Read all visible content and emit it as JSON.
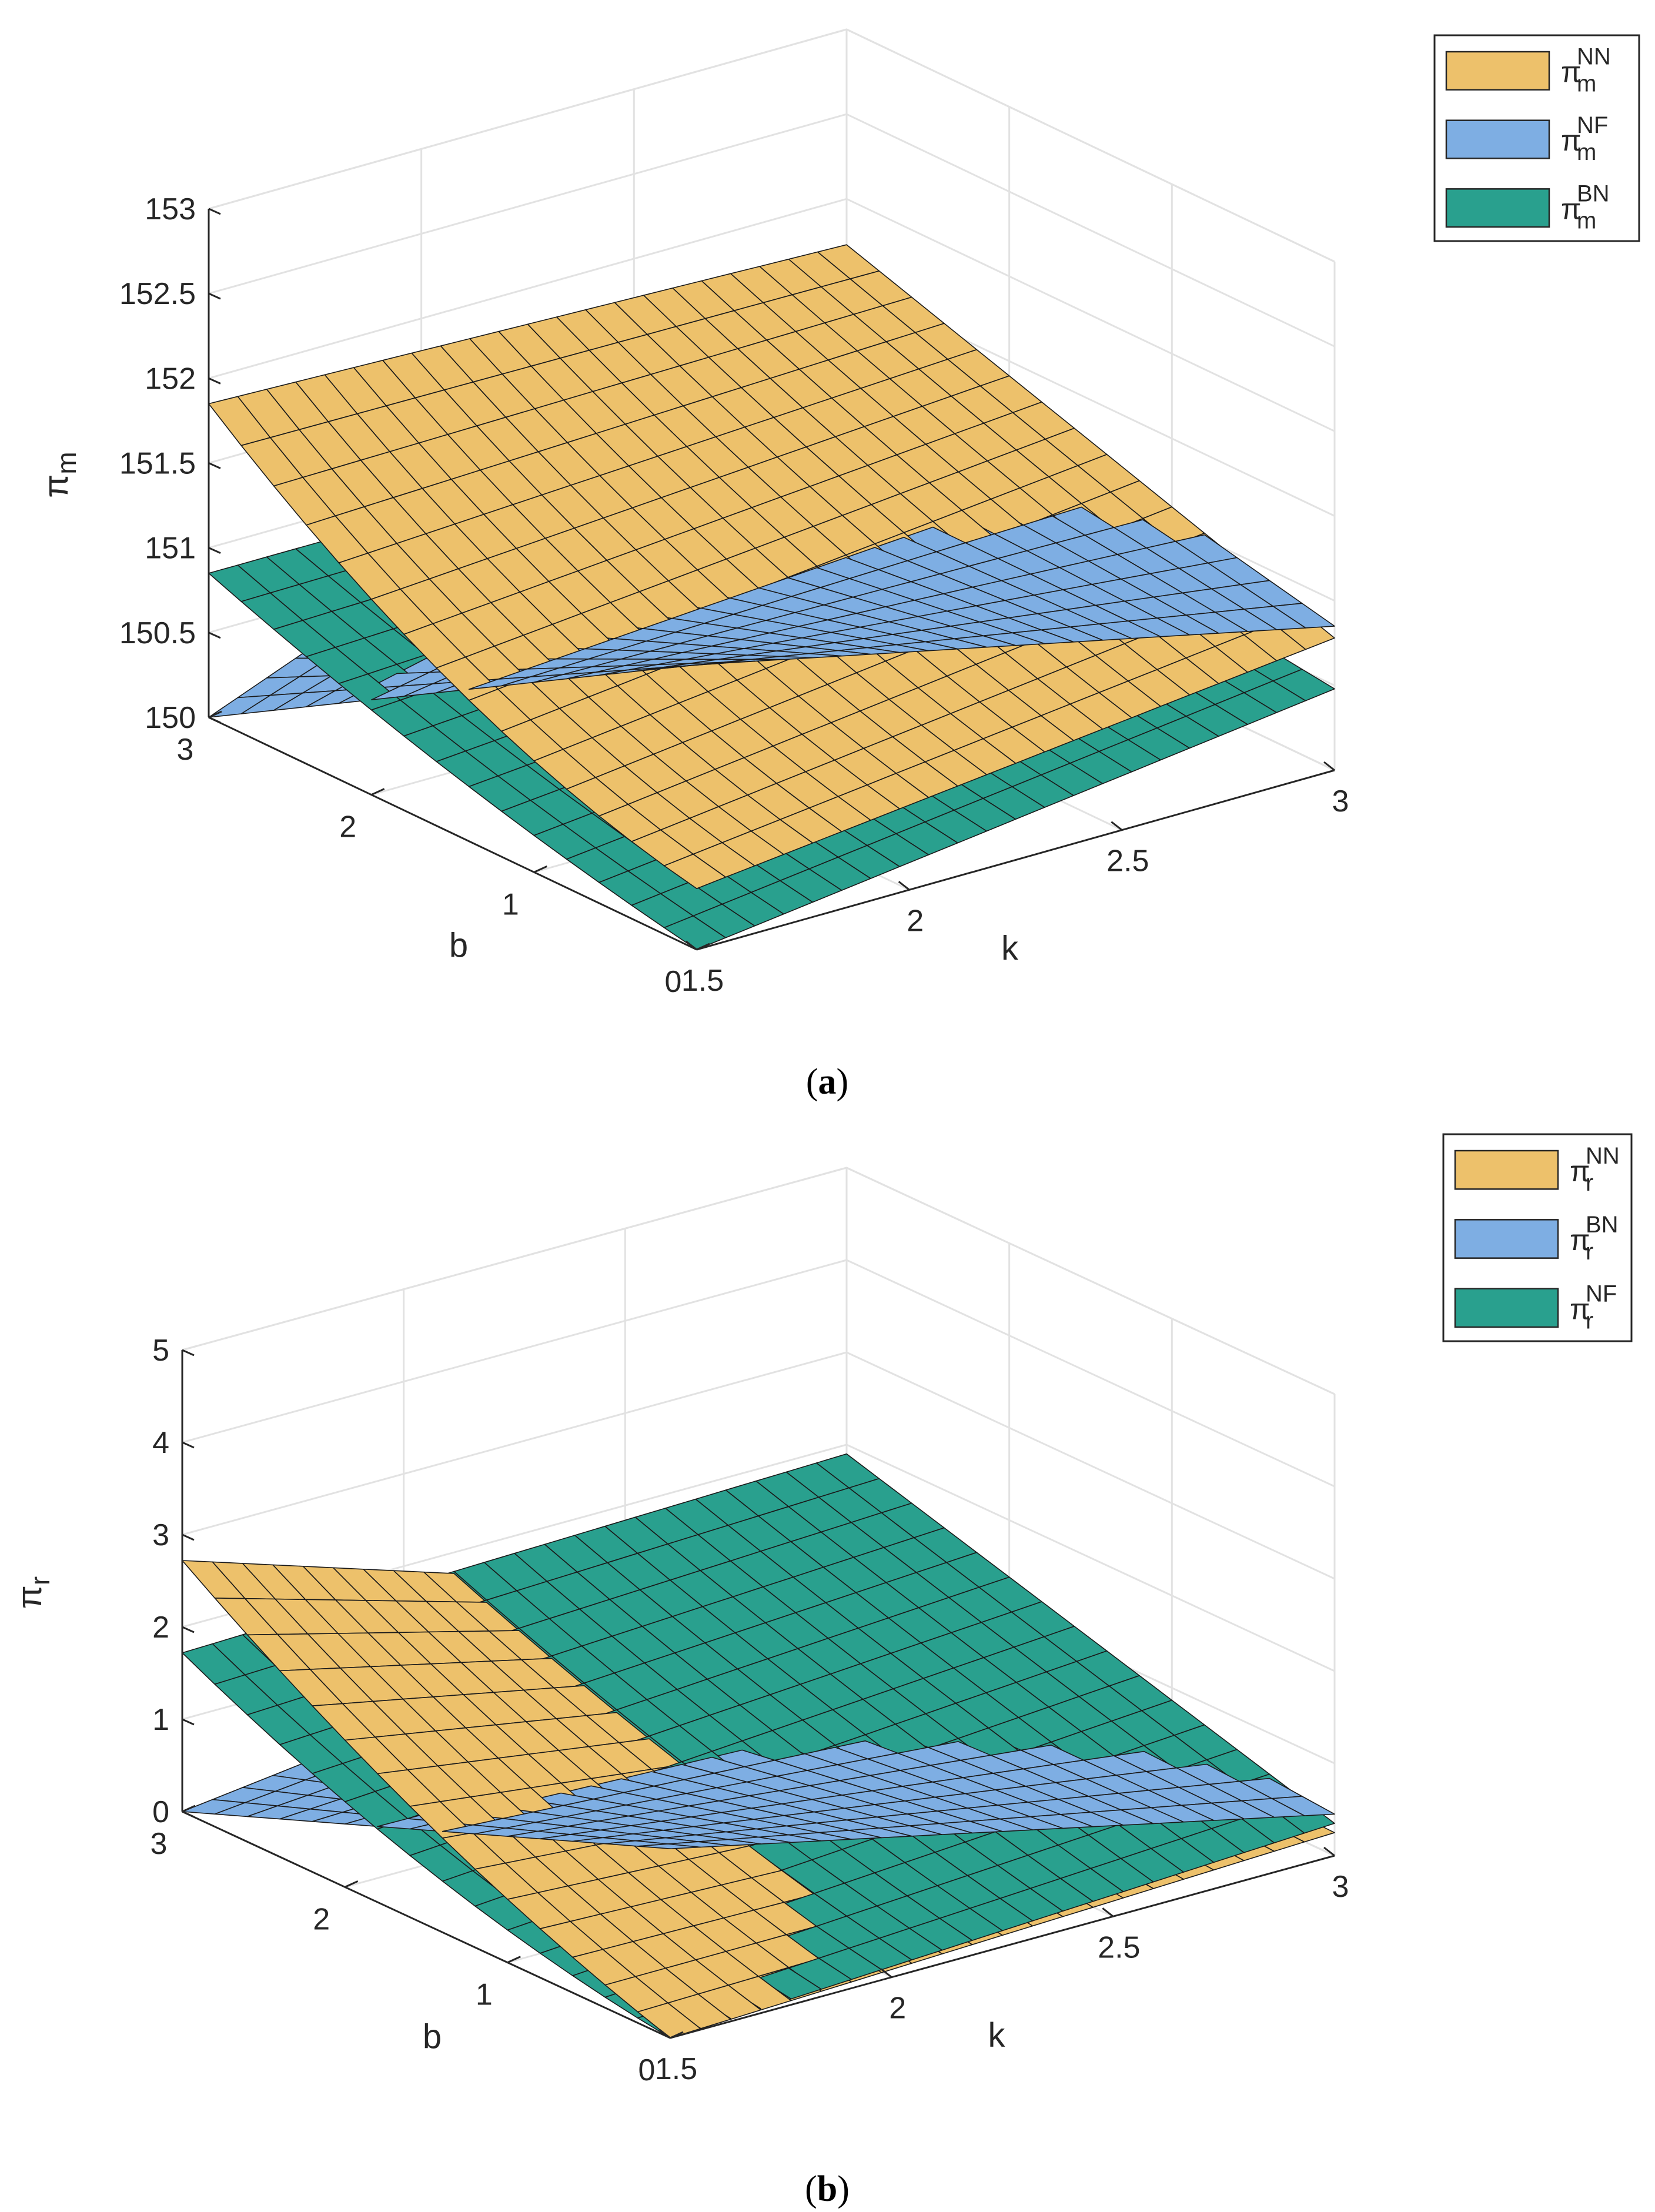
{
  "chart_data": [
    {
      "type": "surface3d",
      "panel_label": "a",
      "xlabel": "k",
      "ylabel": "b",
      "zlabel_base": "π",
      "zlabel_sub": "m",
      "xlim": [
        1.5,
        3
      ],
      "ylim": [
        0,
        3
      ],
      "zlim": [
        150,
        153
      ],
      "xticks": [
        "1.5",
        "2",
        "2.5",
        "3"
      ],
      "yticks": [
        "0",
        "1",
        "2",
        "3"
      ],
      "zticks": [
        "150",
        "150.5",
        "151",
        "151.5",
        "152",
        "152.5",
        "153"
      ],
      "series": [
        {
          "name": "π_m^NN",
          "base": "π",
          "sub": "m",
          "sup": "NN",
          "color": "#EDC16B",
          "corners": {
            "k1.5_b0": 150.36,
            "k3_b0": 150.78,
            "k1.5_b3": 151.85,
            "k3_b3": 151.73
          },
          "curvature": 0.15
        },
        {
          "name": "π_m^NF",
          "base": "π",
          "sub": "m",
          "sup": "NF",
          "color": "#7EAEE3",
          "corners": {
            "k1.5_b0": 151.68,
            "k3_b0": 150.85,
            "k1.5_b3": 150.0,
            "k3_b3": 151.5
          },
          "curvature": 0.0
        },
        {
          "name": "π_m^BN",
          "base": "π",
          "sub": "m",
          "sup": "BN",
          "color": "#29A08E",
          "corners": {
            "k1.5_b0": 150.0,
            "k3_b0": 150.48,
            "k1.5_b3": 150.85,
            "k3_b3": 150.85
          },
          "curvature": 0.05
        }
      ]
    },
    {
      "type": "surface3d",
      "panel_label": "b",
      "xlabel": "k",
      "ylabel": "b",
      "zlabel_base": "π",
      "zlabel_sub": "r",
      "xlim": [
        1.5,
        3
      ],
      "ylim": [
        0,
        3
      ],
      "zlim": [
        0,
        5
      ],
      "xticks": [
        "1.5",
        "2",
        "2.5",
        "3"
      ],
      "yticks": [
        "0",
        "1",
        "2",
        "3"
      ],
      "zticks": [
        "0",
        "1",
        "2",
        "3",
        "4",
        "5"
      ],
      "series": [
        {
          "name": "π_r^NN",
          "base": "π",
          "sub": "r",
          "sup": "NN",
          "color": "#EDC16B",
          "corners": {
            "k1.5_b0": 0.0,
            "k3_b0": 0.25,
            "k1.5_b3": 2.72,
            "k3_b3": 0.4
          },
          "curvature": 0.1
        },
        {
          "name": "π_r^BN",
          "base": "π",
          "sub": "r",
          "sup": "BN",
          "color": "#7EAEE3",
          "corners": {
            "k1.5_b0": 2.05,
            "k3_b0": 0.45,
            "k1.5_b3": 0.0,
            "k3_b3": 0.9
          },
          "curvature": 0.0
        },
        {
          "name": "π_r^NF",
          "base": "π",
          "sub": "r",
          "sup": "NF",
          "color": "#29A08E",
          "corners": {
            "k1.5_b0": 0.0,
            "k3_b0": 0.35,
            "k1.5_b3": 1.72,
            "k3_b3": 1.9
          },
          "curvature": 0.1
        }
      ]
    }
  ]
}
